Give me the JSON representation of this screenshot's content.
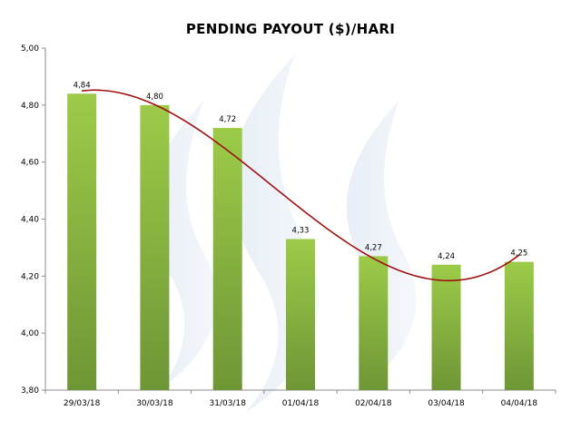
{
  "chart_data": {
    "type": "bar",
    "title": "PENDING PAYOUT ($)/HARI",
    "categories": [
      "29/03/18",
      "30/03/18",
      "31/03/18",
      "01/04/18",
      "02/04/18",
      "03/04/18",
      "04/04/18"
    ],
    "values": [
      4.84,
      4.8,
      4.72,
      4.33,
      4.27,
      4.24,
      4.25
    ],
    "data_labels": [
      "4,84",
      "4,80",
      "4,72",
      "4,33",
      "4,27",
      "4,24",
      "4,25"
    ],
    "ylim": [
      3.8,
      5.0
    ],
    "yticks": [
      3.8,
      4.0,
      4.2,
      4.4,
      4.6,
      4.8,
      5.0
    ],
    "ytick_labels": [
      "3,80",
      "4,00",
      "4,20",
      "4,40",
      "4,60",
      "4,80",
      "5,00"
    ],
    "trendline": {
      "type": "polynomial",
      "color": "#A01010"
    },
    "legend": "none",
    "grid": false,
    "colors": {
      "bar_top": "#9CCB48",
      "bar_bottom": "#6E9636",
      "watermark": "#C6D6EA"
    }
  }
}
